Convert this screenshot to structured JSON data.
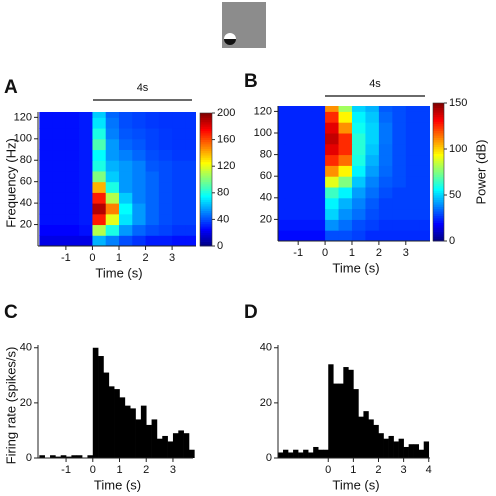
{
  "chart_data": [
    {
      "type": "heatmap",
      "panel": "A",
      "annotation": "4s",
      "xlabel": "Time (s)",
      "ylabel": "Frequency (Hz)",
      "xlim": [
        -2.05,
        3.9
      ],
      "ylim": [
        0,
        125
      ],
      "xticks": [
        -1,
        0,
        1,
        2,
        3
      ],
      "yticks": [
        20,
        40,
        60,
        80,
        100,
        120
      ],
      "clim": [
        0,
        200
      ],
      "cticks": [
        0,
        40,
        80,
        120,
        160,
        200
      ],
      "colormap": "jet",
      "x": [
        -1.75,
        -1.25,
        -0.75,
        -0.25,
        0.25,
        0.75,
        1.25,
        1.75,
        2.25,
        2.75,
        3.25,
        3.75
      ],
      "y": [
        5,
        15,
        25,
        35,
        45,
        55,
        65,
        75,
        85,
        95,
        105,
        115,
        125
      ],
      "z": [
        [
          20,
          20,
          20,
          20,
          60,
          50,
          40,
          35,
          30,
          30,
          28,
          28
        ],
        [
          25,
          25,
          25,
          28,
          110,
          80,
          55,
          45,
          40,
          38,
          35,
          35
        ],
        [
          28,
          28,
          28,
          30,
          170,
          120,
          70,
          55,
          45,
          40,
          38,
          38
        ],
        [
          28,
          28,
          28,
          30,
          190,
          150,
          75,
          55,
          45,
          40,
          38,
          38
        ],
        [
          28,
          28,
          28,
          30,
          170,
          110,
          65,
          50,
          45,
          40,
          38,
          38
        ],
        [
          28,
          28,
          28,
          30,
          140,
          80,
          55,
          50,
          45,
          40,
          38,
          38
        ],
        [
          28,
          28,
          28,
          30,
          100,
          65,
          55,
          50,
          45,
          40,
          38,
          38
        ],
        [
          28,
          28,
          28,
          30,
          80,
          60,
          55,
          50,
          42,
          40,
          38,
          38
        ],
        [
          28,
          28,
          28,
          30,
          75,
          55,
          50,
          45,
          40,
          38,
          36,
          36
        ],
        [
          28,
          28,
          28,
          30,
          90,
          55,
          45,
          42,
          38,
          36,
          35,
          35
        ],
        [
          28,
          28,
          28,
          30,
          80,
          50,
          42,
          40,
          38,
          36,
          35,
          35
        ],
        [
          28,
          28,
          28,
          30,
          70,
          48,
          40,
          38,
          36,
          35,
          35,
          35
        ],
        [
          28,
          28,
          28,
          30,
          65,
          45,
          40,
          38,
          36,
          35,
          35,
          35
        ]
      ]
    },
    {
      "type": "heatmap",
      "panel": "B",
      "annotation": "4s",
      "xlabel": "Time (s)",
      "colorbar_label": "Power (dB)",
      "xlim": [
        -1.75,
        3.9
      ],
      "ylim": [
        0,
        125
      ],
      "xticks": [
        -1,
        0,
        1,
        2,
        3
      ],
      "yticks": [
        20,
        40,
        60,
        80,
        100,
        120
      ],
      "clim": [
        0,
        150
      ],
      "cticks": [
        0,
        50,
        100,
        150
      ],
      "colormap": "jet",
      "x": [
        -1.75,
        -1.25,
        -0.75,
        -0.25,
        0.25,
        0.75,
        1.25,
        1.75,
        2.25,
        2.75,
        3.25,
        3.75
      ],
      "y": [
        5,
        15,
        25,
        35,
        45,
        55,
        65,
        75,
        85,
        95,
        105,
        115,
        125
      ],
      "z": [
        [
          20,
          20,
          20,
          20,
          30,
          30,
          28,
          25,
          25,
          25,
          25,
          25
        ],
        [
          22,
          22,
          22,
          22,
          40,
          35,
          30,
          28,
          26,
          26,
          26,
          26
        ],
        [
          24,
          24,
          24,
          24,
          50,
          40,
          35,
          30,
          28,
          28,
          28,
          28
        ],
        [
          24,
          24,
          24,
          24,
          55,
          45,
          38,
          32,
          28,
          28,
          28,
          28
        ],
        [
          24,
          24,
          24,
          24,
          65,
          55,
          42,
          35,
          30,
          28,
          28,
          28
        ],
        [
          24,
          24,
          24,
          24,
          90,
          75,
          48,
          38,
          32,
          30,
          28,
          28
        ],
        [
          24,
          24,
          24,
          24,
          110,
          95,
          55,
          42,
          34,
          30,
          28,
          28
        ],
        [
          24,
          24,
          24,
          24,
          125,
          115,
          60,
          45,
          35,
          30,
          28,
          28
        ],
        [
          24,
          24,
          24,
          24,
          135,
          125,
          62,
          48,
          35,
          30,
          28,
          28
        ],
        [
          24,
          24,
          24,
          24,
          140,
          125,
          62,
          50,
          36,
          30,
          28,
          28
        ],
        [
          24,
          24,
          24,
          24,
          135,
          110,
          58,
          50,
          36,
          30,
          28,
          28
        ],
        [
          24,
          24,
          24,
          24,
          125,
          95,
          55,
          48,
          34,
          30,
          28,
          28
        ],
        [
          24,
          24,
          24,
          24,
          110,
          80,
          50,
          45,
          32,
          30,
          28,
          28
        ]
      ]
    },
    {
      "type": "histogram",
      "panel": "C",
      "xlabel": "Time (s)",
      "ylabel": "Firing rate (spikes/s)",
      "color": "#000000",
      "xlim": [
        -2.05,
        3.75
      ],
      "ylim": [
        0,
        41
      ],
      "xticks": [
        -1,
        0,
        1,
        2,
        3
      ],
      "yticks": [
        0,
        20,
        40
      ],
      "bins": [
        -2,
        -1.8,
        -1.6,
        -1.4,
        -1.2,
        -1,
        -0.8,
        -0.6,
        -0.4,
        -0.2,
        0,
        0.2,
        0.4,
        0.6,
        0.8,
        1,
        1.2,
        1.4,
        1.6,
        1.8,
        2,
        2.2,
        2.4,
        2.6,
        2.8,
        3,
        3.2,
        3.4,
        3.6,
        3.8
      ],
      "values": [
        1,
        0,
        1,
        0.5,
        1,
        0.5,
        1,
        1,
        0,
        1,
        40,
        37,
        31,
        26,
        25,
        22,
        19,
        18,
        14,
        19,
        12,
        14,
        7,
        8,
        6,
        9,
        10,
        9,
        3
      ]
    },
    {
      "type": "histogram",
      "panel": "D",
      "xlabel": "Time (s)",
      "color": "#000000",
      "xlim": [
        -2,
        4.05
      ],
      "ylim": [
        0,
        41
      ],
      "xticks": [
        0,
        1,
        2,
        3,
        4
      ],
      "yticks": [
        0,
        20,
        40
      ],
      "bins": [
        -2,
        -1.8,
        -1.6,
        -1.4,
        -1.2,
        -1,
        -0.8,
        -0.6,
        -0.4,
        -0.2,
        0,
        0.2,
        0.4,
        0.6,
        0.8,
        1,
        1.2,
        1.4,
        1.6,
        1.8,
        2,
        2.2,
        2.4,
        2.6,
        2.8,
        3,
        3.2,
        3.4,
        3.6,
        3.8,
        4
      ],
      "values": [
        2,
        3,
        2,
        3,
        2,
        3,
        2,
        4,
        3,
        3,
        34,
        27,
        27,
        33,
        32,
        25,
        15,
        17,
        14,
        12,
        9,
        7,
        8,
        6,
        7,
        4,
        5,
        5,
        3,
        6
      ]
    }
  ]
}
